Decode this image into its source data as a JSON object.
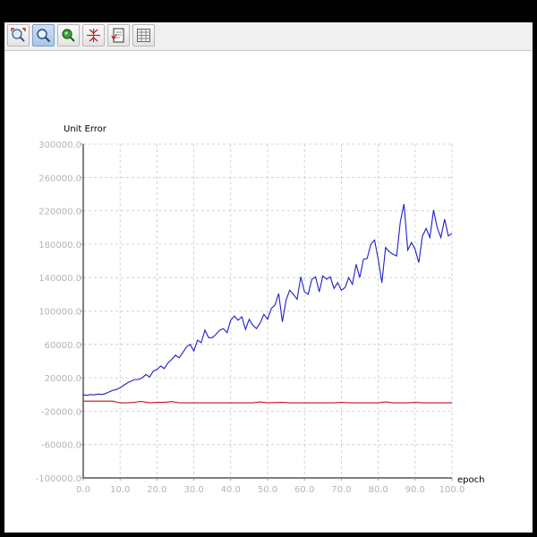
{
  "toolbar": {
    "buttons": [
      {
        "icon": "zoom-region-icon",
        "active": false
      },
      {
        "icon": "zoom-icon",
        "active": true
      },
      {
        "icon": "pan-icon",
        "active": false
      },
      {
        "icon": "fit-icon",
        "active": false
      },
      {
        "icon": "save-image-icon",
        "active": false
      },
      {
        "icon": "data-table-icon",
        "active": false
      }
    ]
  },
  "chart_data": {
    "type": "line",
    "xlabel": "epoch",
    "ylabel": "Unit Error",
    "xlim": [
      0,
      100
    ],
    "ylim": [
      -100000,
      300000
    ],
    "x_ticks": [
      "0.0",
      "10.0",
      "20.0",
      "30.0",
      "40.0",
      "50.0",
      "60.0",
      "70.0",
      "80.0",
      "90.0",
      "100.0"
    ],
    "y_ticks": [
      "300000.0",
      "260000.0",
      "220000.0",
      "180000.0",
      "140000.0",
      "100000.0",
      "60000.0",
      "20000.0",
      "-20000.0",
      "-60000.0",
      "-100000.0"
    ],
    "grid": true,
    "colors": {
      "series_0": "#1f1fc8",
      "series_1": "#c8101e",
      "grid": "#c8c8c8",
      "axis": "#000000",
      "tick_text": "#b4b4b4"
    },
    "series": [
      {
        "values": [
          [
            0,
            -500
          ],
          [
            1,
            -1000
          ],
          [
            2,
            0
          ],
          [
            3,
            -500
          ],
          [
            4,
            500
          ],
          [
            5,
            0
          ],
          [
            6,
            1000
          ],
          [
            7,
            3000
          ],
          [
            8,
            5000
          ],
          [
            9,
            6000
          ],
          [
            10,
            8000
          ],
          [
            11,
            11000
          ],
          [
            12,
            14000
          ],
          [
            13,
            16000
          ],
          [
            14,
            18000
          ],
          [
            15,
            18000
          ],
          [
            16,
            20000
          ],
          [
            17,
            24000
          ],
          [
            18,
            21000
          ],
          [
            19,
            28000
          ],
          [
            20,
            30000
          ],
          [
            21,
            34000
          ],
          [
            22,
            31000
          ],
          [
            23,
            38000
          ],
          [
            24,
            42000
          ],
          [
            25,
            47000
          ],
          [
            26,
            44000
          ],
          [
            27,
            50000
          ],
          [
            28,
            57000
          ],
          [
            29,
            60000
          ],
          [
            30,
            52000
          ],
          [
            31,
            65000
          ],
          [
            32,
            62000
          ],
          [
            33,
            77000
          ],
          [
            34,
            68000
          ],
          [
            35,
            68000
          ],
          [
            36,
            72000
          ],
          [
            37,
            77000
          ],
          [
            38,
            79000
          ],
          [
            39,
            74000
          ],
          [
            40,
            89000
          ],
          [
            41,
            94000
          ],
          [
            42,
            89000
          ],
          [
            43,
            93000
          ],
          [
            44,
            78000
          ],
          [
            45,
            90000
          ],
          [
            46,
            83000
          ],
          [
            47,
            79000
          ],
          [
            48,
            86000
          ],
          [
            49,
            96000
          ],
          [
            50,
            90000
          ],
          [
            51,
            103000
          ],
          [
            52,
            107000
          ],
          [
            53,
            121000
          ],
          [
            54,
            87000
          ],
          [
            55,
            113000
          ],
          [
            56,
            125000
          ],
          [
            57,
            120000
          ],
          [
            58,
            114000
          ],
          [
            59,
            141000
          ],
          [
            60,
            123000
          ],
          [
            61,
            120000
          ],
          [
            62,
            138000
          ],
          [
            63,
            141000
          ],
          [
            64,
            123000
          ],
          [
            65,
            142000
          ],
          [
            66,
            138000
          ],
          [
            67,
            141000
          ],
          [
            68,
            127000
          ],
          [
            69,
            134000
          ],
          [
            70,
            125000
          ],
          [
            71,
            128000
          ],
          [
            72,
            140000
          ],
          [
            73,
            132000
          ],
          [
            74,
            156000
          ],
          [
            75,
            140000
          ],
          [
            76,
            162000
          ],
          [
            77,
            163000
          ],
          [
            78,
            180000
          ],
          [
            79,
            185000
          ],
          [
            80,
            162000
          ],
          [
            81,
            134000
          ],
          [
            82,
            176000
          ],
          [
            83,
            171000
          ],
          [
            84,
            168000
          ],
          [
            85,
            166000
          ],
          [
            86,
            207000
          ],
          [
            87,
            228000
          ],
          [
            88,
            173000
          ],
          [
            89,
            182000
          ],
          [
            90,
            174000
          ],
          [
            91,
            158000
          ],
          [
            92,
            190000
          ],
          [
            93,
            199000
          ],
          [
            94,
            188000
          ],
          [
            95,
            221000
          ],
          [
            96,
            200000
          ],
          [
            97,
            188000
          ],
          [
            98,
            210000
          ],
          [
            99,
            190000
          ],
          [
            100,
            193000
          ]
        ]
      },
      {
        "values": [
          [
            0,
            -8000
          ],
          [
            5,
            -8000
          ],
          [
            8,
            -8000
          ],
          [
            10,
            -10000
          ],
          [
            12,
            -10000
          ],
          [
            14,
            -9500
          ],
          [
            15,
            -8500
          ],
          [
            16,
            -8500
          ],
          [
            18,
            -10000
          ],
          [
            20,
            -9500
          ],
          [
            22,
            -9500
          ],
          [
            24,
            -8500
          ],
          [
            26,
            -10000
          ],
          [
            30,
            -10000
          ],
          [
            40,
            -10000
          ],
          [
            46,
            -10000
          ],
          [
            48,
            -9000
          ],
          [
            50,
            -10000
          ],
          [
            54,
            -9500
          ],
          [
            56,
            -10000
          ],
          [
            60,
            -10000
          ],
          [
            68,
            -10000
          ],
          [
            70,
            -9500
          ],
          [
            72,
            -10000
          ],
          [
            80,
            -10000
          ],
          [
            82,
            -9000
          ],
          [
            84,
            -10000
          ],
          [
            88,
            -10000
          ],
          [
            90,
            -9500
          ],
          [
            92,
            -10000
          ],
          [
            100,
            -10000
          ]
        ]
      }
    ]
  }
}
